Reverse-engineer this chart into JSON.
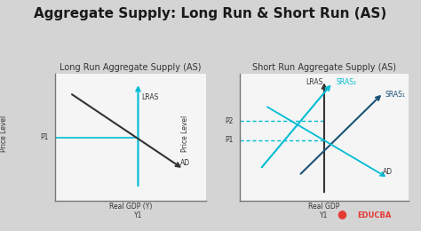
{
  "title": "Aggregate Supply: Long Run & Short Run (AS)",
  "title_fontsize": 11,
  "bg_color": "#d4d4d4",
  "chart_bg": "#f5f5f5",
  "left_subtitle": "Long Run Aggregate Supply (AS)",
  "right_subtitle": "Short Run Aggregate Supply (AS)",
  "subtitle_fontsize": 7,
  "lras_color_left": "#00bcd4",
  "lras_color_right": "#333333",
  "ad_color_left": "#333333",
  "ad_color_right": "#00bcd4",
  "sras2_color": "#00bcd4",
  "sras1_color": "#1a5276",
  "dashed_color": "#00bcd4",
  "p1_line_color": "#00bcd4",
  "educba_color": "#e53935",
  "text_color": "#333333"
}
